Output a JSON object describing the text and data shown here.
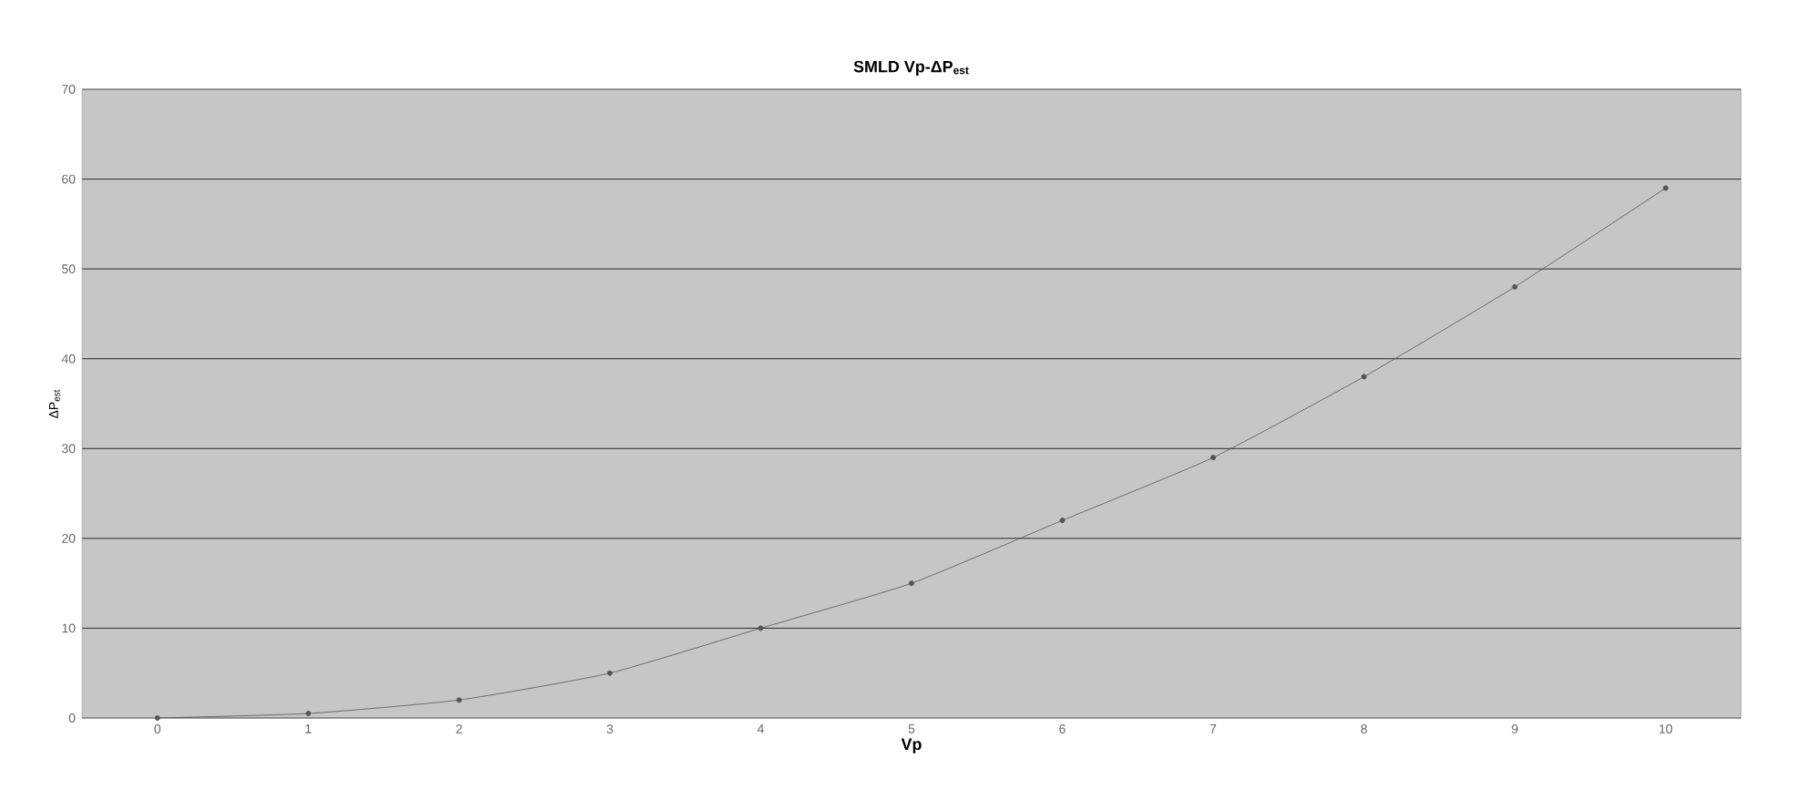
{
  "chart_data": {
    "type": "line",
    "title": "SMLD Vp-ΔP$_{est}$",
    "xlabel": "Vp",
    "ylabel": "ΔP$_{est}$",
    "x": [
      0,
      1,
      2,
      3,
      4,
      5,
      6,
      7,
      8,
      9,
      10
    ],
    "series": [
      {
        "color": "#555555",
        "values": [
          0,
          0.5,
          2,
          5,
          10,
          15,
          22,
          29,
          38,
          48,
          59
        ]
      }
    ],
    "xlim": [
      -0.5,
      10.5
    ],
    "ylim": [
      0,
      70
    ],
    "xticks": [
      0,
      1,
      2,
      3,
      4,
      5,
      6,
      7,
      8,
      9,
      10
    ],
    "yticks": [
      0,
      10,
      20,
      30,
      40,
      50,
      60,
      70
    ],
    "grid": "y",
    "marker": "circle",
    "line_style": "solid"
  }
}
